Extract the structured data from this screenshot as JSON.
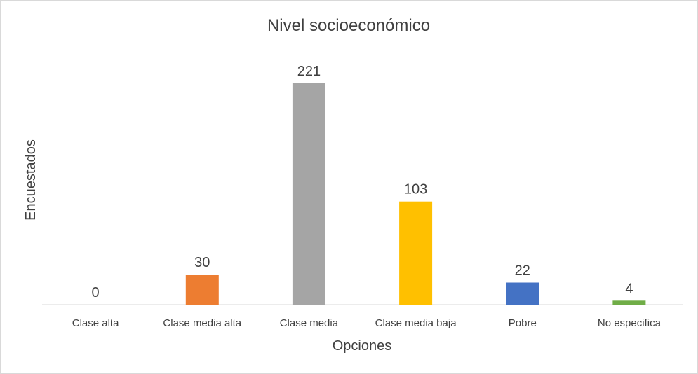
{
  "chart_data": {
    "type": "bar",
    "title": "Nivel socioeconómico",
    "xlabel": "Opciones",
    "ylabel": "Encuestados",
    "categories": [
      "Clase alta",
      "Clase media alta",
      "Clase media",
      "Clase media baja",
      "Pobre",
      "No especifica"
    ],
    "values": [
      0,
      30,
      221,
      103,
      22,
      4
    ],
    "data_labels": [
      "0",
      "30",
      "221",
      "103",
      "22",
      "4"
    ],
    "colors": [
      "#4472C4",
      "#ED7D31",
      "#A5A5A5",
      "#FFC000",
      "#4472C4",
      "#70AD47"
    ],
    "ylim": [
      0,
      221
    ],
    "grid": false,
    "legend": "none"
  }
}
